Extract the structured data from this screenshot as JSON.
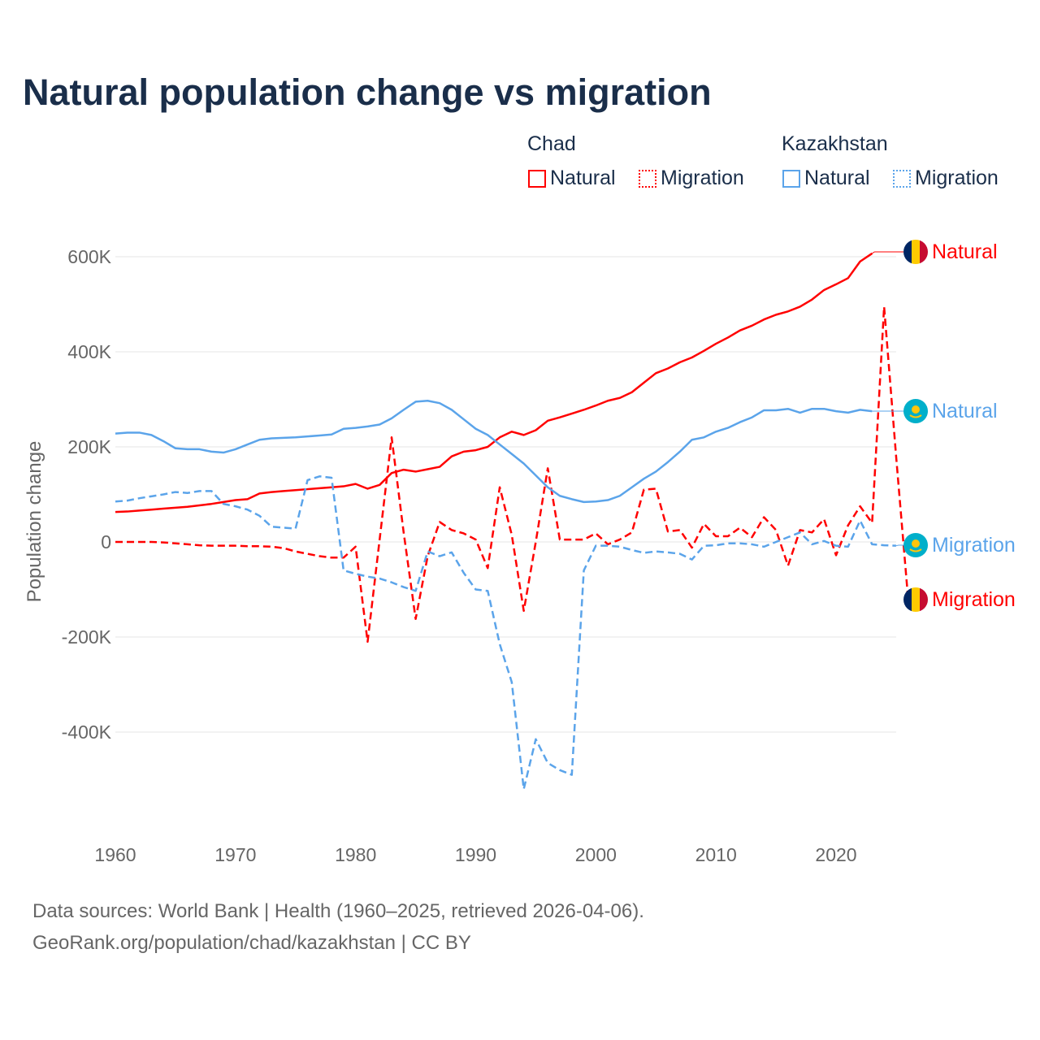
{
  "chart_data": {
    "type": "line",
    "title": "Natural population change vs migration",
    "ylabel": "Population change",
    "xlabel": "",
    "xlim": [
      1960,
      2025
    ],
    "ylim": [
      -550,
      700
    ],
    "x_ticks": [
      1960,
      1970,
      1980,
      1990,
      2000,
      2010,
      2020
    ],
    "x_tick_labels": [
      "1960",
      "1970",
      "1980",
      "1990",
      "2000",
      "2010",
      "2020"
    ],
    "y_ticks": [
      600,
      400,
      200,
      0,
      -200,
      -400
    ],
    "y_tick_labels": [
      "600K",
      "400K",
      "200K",
      "0",
      "-200K",
      "-400K"
    ],
    "grid": true,
    "units": "thousands",
    "legend": {
      "placement": "top-right",
      "groups": [
        {
          "name": "Chad",
          "items": [
            "Natural",
            "Migration"
          ]
        },
        {
          "name": "Kazakhstan",
          "items": [
            "Natural",
            "Migration"
          ]
        }
      ]
    },
    "series": [
      {
        "name": "Chad Natural",
        "country": "Chad",
        "kind": "Natural",
        "end_label": "Natural",
        "color": "#ff0000",
        "dashed": false,
        "start": 1960,
        "values": [
          63,
          64,
          66,
          68,
          70,
          72,
          74,
          77,
          80,
          84,
          88,
          90,
          102,
          105,
          107,
          109,
          111,
          113,
          115,
          117,
          122,
          112,
          120,
          145,
          152,
          148,
          153,
          158,
          180,
          190,
          193,
          200,
          220,
          232,
          225,
          235,
          255,
          262,
          270,
          278,
          287,
          297,
          303,
          315,
          335,
          355,
          365,
          378,
          388,
          402,
          417,
          430,
          445,
          455,
          468,
          478,
          485,
          495,
          510,
          530,
          542,
          555,
          590,
          607
        ]
      },
      {
        "name": "Chad Migration",
        "country": "Chad",
        "kind": "Migration",
        "end_label": "Migration",
        "color": "#ff0000",
        "dashed": true,
        "start": 1960,
        "values": [
          0,
          0,
          0,
          0,
          -1,
          -3,
          -5,
          -7,
          -8,
          -8,
          -8,
          -9,
          -9,
          -10,
          -13,
          -20,
          -25,
          -30,
          -33,
          -33,
          -10,
          -210,
          5,
          220,
          20,
          -162,
          -30,
          42,
          25,
          18,
          5,
          -55,
          115,
          15,
          -145,
          0,
          155,
          5,
          5,
          5,
          18,
          -5,
          5,
          20,
          110,
          112,
          22,
          25,
          -12,
          38,
          12,
          12,
          30,
          10,
          52,
          25,
          -50,
          25,
          20,
          48,
          -28,
          35,
          75,
          40,
          495,
          180,
          -120
        ]
      },
      {
        "name": "Kazakhstan Natural",
        "country": "Kazakhstan",
        "kind": "Natural",
        "end_label": "Natural",
        "color": "#5ba4ea",
        "dashed": false,
        "start": 1960,
        "values": [
          228,
          230,
          230,
          225,
          212,
          197,
          195,
          195,
          190,
          188,
          195,
          205,
          215,
          218,
          219,
          220,
          222,
          224,
          226,
          238,
          240,
          243,
          247,
          260,
          278,
          295,
          297,
          292,
          278,
          258,
          238,
          225,
          205,
          185,
          165,
          140,
          115,
          97,
          90,
          84,
          85,
          88,
          97,
          115,
          133,
          148,
          168,
          190,
          215,
          220,
          232,
          240,
          252,
          262,
          277,
          277,
          280,
          272,
          280,
          280,
          275,
          272,
          278,
          275
        ]
      },
      {
        "name": "Kazakhstan Migration",
        "country": "Kazakhstan",
        "kind": "Migration",
        "end_label": "Migration",
        "color": "#5ba4ea",
        "dashed": true,
        "start": 1960,
        "values": [
          85,
          87,
          92,
          96,
          100,
          105,
          103,
          107,
          107,
          80,
          75,
          68,
          55,
          32,
          30,
          28,
          130,
          138,
          135,
          -60,
          -67,
          -73,
          -77,
          -85,
          -95,
          -103,
          -20,
          -30,
          -22,
          -65,
          -100,
          -103,
          -215,
          -295,
          -520,
          -415,
          -465,
          -480,
          -490,
          -60,
          -8,
          -8,
          -10,
          -17,
          -23,
          -20,
          -22,
          -25,
          -37,
          -8,
          -7,
          -3,
          -3,
          -5,
          -10,
          0,
          10,
          20,
          -5,
          2,
          -8,
          -10,
          45,
          -5,
          -7,
          -8
        ]
      }
    ]
  },
  "legend_labels": {
    "chad": "Chad",
    "kazakhstan": "Kazakhstan",
    "natural": "Natural",
    "migration": "Migration"
  },
  "source": {
    "line1": "Data sources: World Bank | Health (1960–2025, retrieved 2026-04-06).",
    "line2": "GeoRank.org/population/chad/kazakhstan | CC BY"
  }
}
